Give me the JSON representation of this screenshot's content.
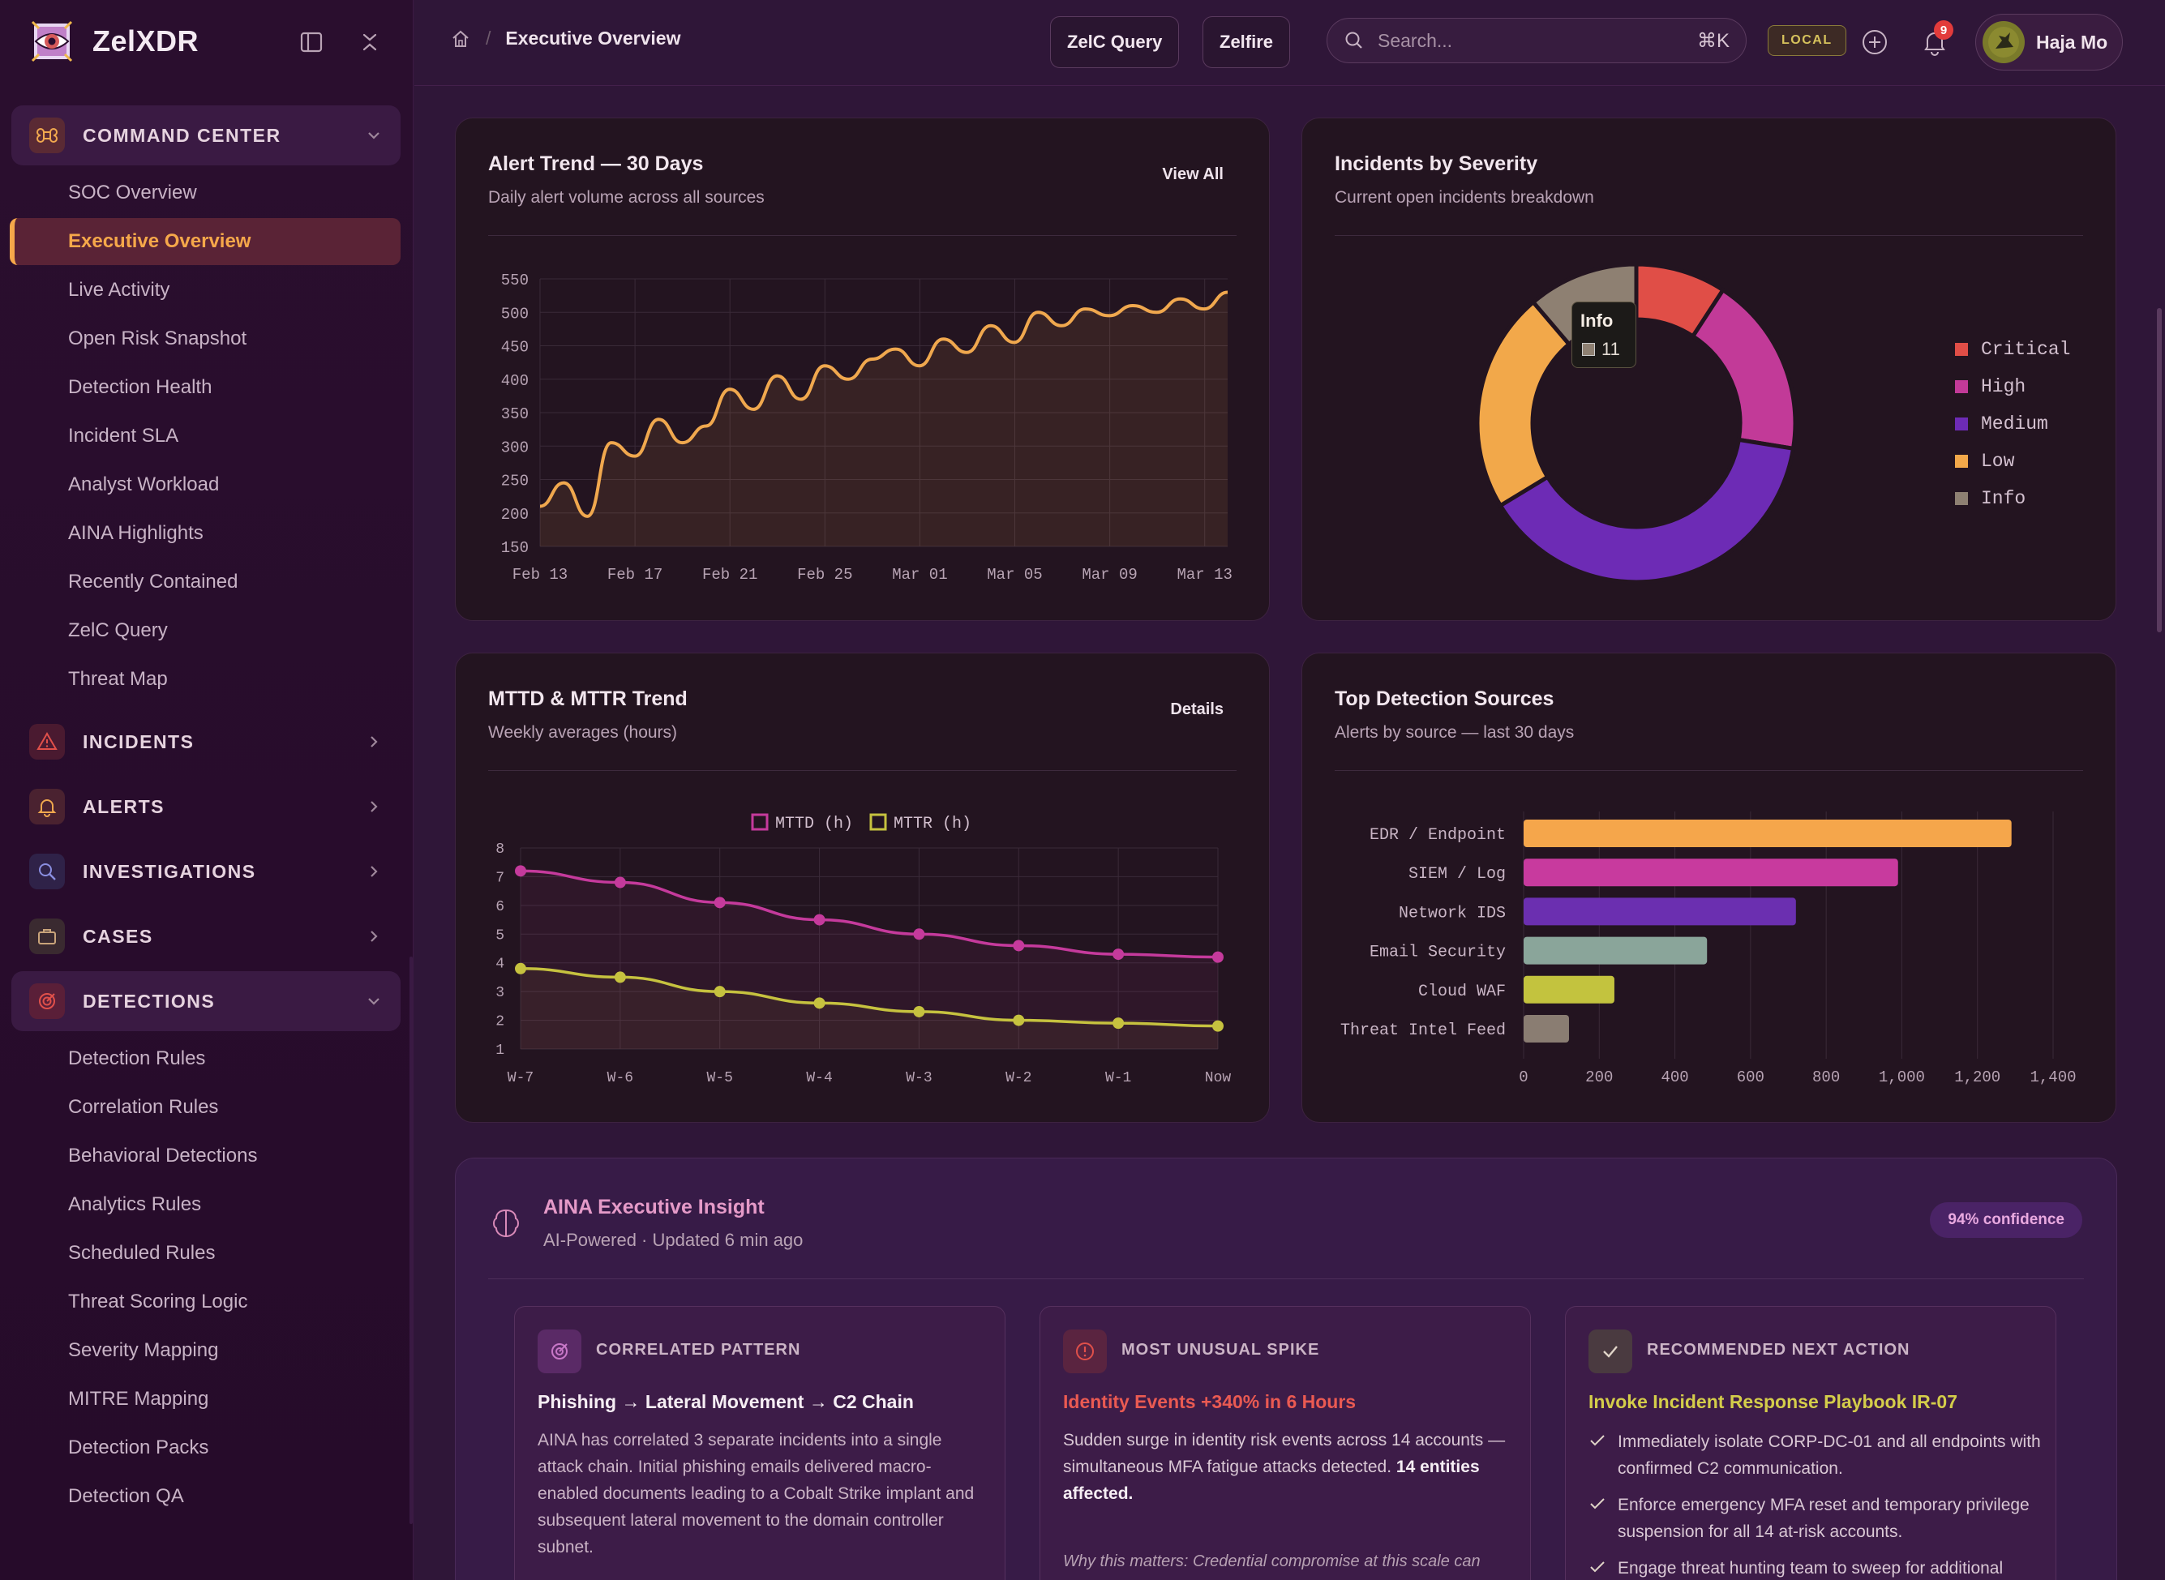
{
  "app": {
    "name": "ZelXDR"
  },
  "sidebar": {
    "command_center": {
      "label": "COMMAND CENTER"
    },
    "command_items": [
      "SOC Overview",
      "Executive Overview",
      "Live Activity",
      "Open Risk Snapshot",
      "Detection Health",
      "Incident SLA",
      "Analyst Workload",
      "AINA Highlights",
      "Recently Contained",
      "ZelC Query",
      "Threat Map"
    ],
    "incidents": {
      "label": "INCIDENTS"
    },
    "alerts": {
      "label": "ALERTS"
    },
    "investigations": {
      "label": "INVESTIGATIONS"
    },
    "cases": {
      "label": "CASES"
    },
    "detections": {
      "label": "DETECTIONS"
    },
    "detection_items": [
      "Detection Rules",
      "Correlation Rules",
      "Behavioral Detections",
      "Analytics Rules",
      "Scheduled Rules",
      "Threat Scoring Logic",
      "Severity Mapping",
      "MITRE Mapping",
      "Detection Packs",
      "Detection QA"
    ]
  },
  "topbar": {
    "breadcrumb": "Executive Overview",
    "btn_query": "ZelC Query",
    "btn_fire": "Zelfire",
    "search_placeholder": "Search...",
    "search_shortcut": "⌘K",
    "env_badge": "LOCAL",
    "notif_count": "9",
    "user_name": "Haja Mo"
  },
  "alert_trend": {
    "title": "Alert Trend — 30 Days",
    "subtitle": "Daily alert volume across all sources",
    "link": "View All"
  },
  "severity": {
    "title": "Incidents by Severity",
    "subtitle": "Current open incidents breakdown",
    "tooltip_label": "Info",
    "tooltip_value": "11"
  },
  "mttd": {
    "title": "MTTD & MTTR Trend",
    "subtitle": "Weekly averages (hours)",
    "link": "Details"
  },
  "sources": {
    "title": "Top Detection Sources",
    "subtitle": "Alerts by source — last 30 days"
  },
  "chart_data": [
    {
      "type": "line",
      "title": "Alert Trend — 30 Days",
      "x_ticks": [
        "Feb 13",
        "Feb 17",
        "Feb 21",
        "Feb 25",
        "Mar 01",
        "Mar 05",
        "Mar 09",
        "Mar 13"
      ],
      "ylim": [
        150,
        550
      ],
      "y_ticks": [
        550,
        500,
        450,
        400,
        350,
        300,
        250,
        200,
        150
      ],
      "values": [
        210,
        245,
        195,
        305,
        285,
        340,
        305,
        330,
        385,
        355,
        405,
        370,
        420,
        400,
        430,
        445,
        420,
        460,
        440,
        480,
        455,
        500,
        480,
        505,
        495,
        510,
        500,
        520,
        505,
        530
      ],
      "color": "#f0a84e"
    },
    {
      "type": "pie",
      "title": "Incidents by Severity",
      "labels": [
        "Critical",
        "High",
        "Medium",
        "Low",
        "Info"
      ],
      "values": [
        9,
        18,
        38,
        22,
        11
      ],
      "colors": [
        "#e04e47",
        "#c23a98",
        "#6d2bb5",
        "#f2a84a",
        "#8e8072"
      ]
    },
    {
      "type": "line",
      "title": "MTTD & MTTR Trend",
      "categories": [
        "W-7",
        "W-6",
        "W-5",
        "W-4",
        "W-3",
        "W-2",
        "W-1",
        "Now"
      ],
      "ylim": [
        1,
        8
      ],
      "y_ticks": [
        8,
        7,
        6,
        5,
        4,
        3,
        2,
        1
      ],
      "series": [
        {
          "name": "MTTD (h)",
          "values": [
            7.2,
            6.8,
            6.1,
            5.5,
            5.0,
            4.6,
            4.3,
            4.2
          ],
          "color": "#c53a9c"
        },
        {
          "name": "MTTR (h)",
          "values": [
            3.8,
            3.5,
            3.0,
            2.6,
            2.3,
            2.0,
            1.9,
            1.8
          ],
          "color": "#c6c23f"
        }
      ]
    },
    {
      "type": "bar",
      "title": "Top Detection Sources",
      "categories": [
        "EDR / Endpoint",
        "SIEM / Log",
        "Network IDS",
        "Email Security",
        "Cloud WAF",
        "Threat Intel Feed"
      ],
      "values": [
        1290,
        990,
        720,
        485,
        240,
        120
      ],
      "colors": [
        "#f5a64b",
        "#c83a9e",
        "#6b2fb0",
        "#8aa59a",
        "#c3c33e",
        "#8a7d72"
      ],
      "xlim": [
        0,
        1400
      ],
      "x_ticks": [
        "0",
        "200",
        "400",
        "600",
        "800",
        "1,000",
        "1,200",
        "1,400"
      ]
    }
  ],
  "aina": {
    "title": "AINA Executive Insight",
    "subtitle": "AI-Powered · Updated 6 min ago",
    "confidence": "94% confidence",
    "correlated": {
      "label": "CORRELATED PATTERN",
      "heading": "Phishing → Lateral Movement → C2 Chain",
      "body": "AINA has correlated 3 separate incidents into a single attack chain. Initial phishing emails delivered macro-enabled documents leading to a Cobalt Strike implant and subsequent lateral movement to the domain controller subnet."
    },
    "spike": {
      "label": "MOST UNUSUAL SPIKE",
      "heading": "Identity Events +340% in 6 Hours",
      "body": "Sudden surge in identity risk events across 14 accounts — simultaneous MFA fatigue attacks detected.",
      "body_bold": "14 entities affected.",
      "why": "Why this matters: Credential compromise at this scale can enable widespread lateral access across all protected systems within hours."
    },
    "action": {
      "label": "RECOMMENDED NEXT ACTION",
      "heading": "Invoke Incident Response Playbook IR-07",
      "items": [
        "Immediately isolate CORP-DC-01 and all endpoints with confirmed C2 communication.",
        "Enforce emergency MFA reset and temporary privilege suspension for all 14 at-risk accounts.",
        "Engage threat hunting team to sweep for additional"
      ]
    }
  }
}
